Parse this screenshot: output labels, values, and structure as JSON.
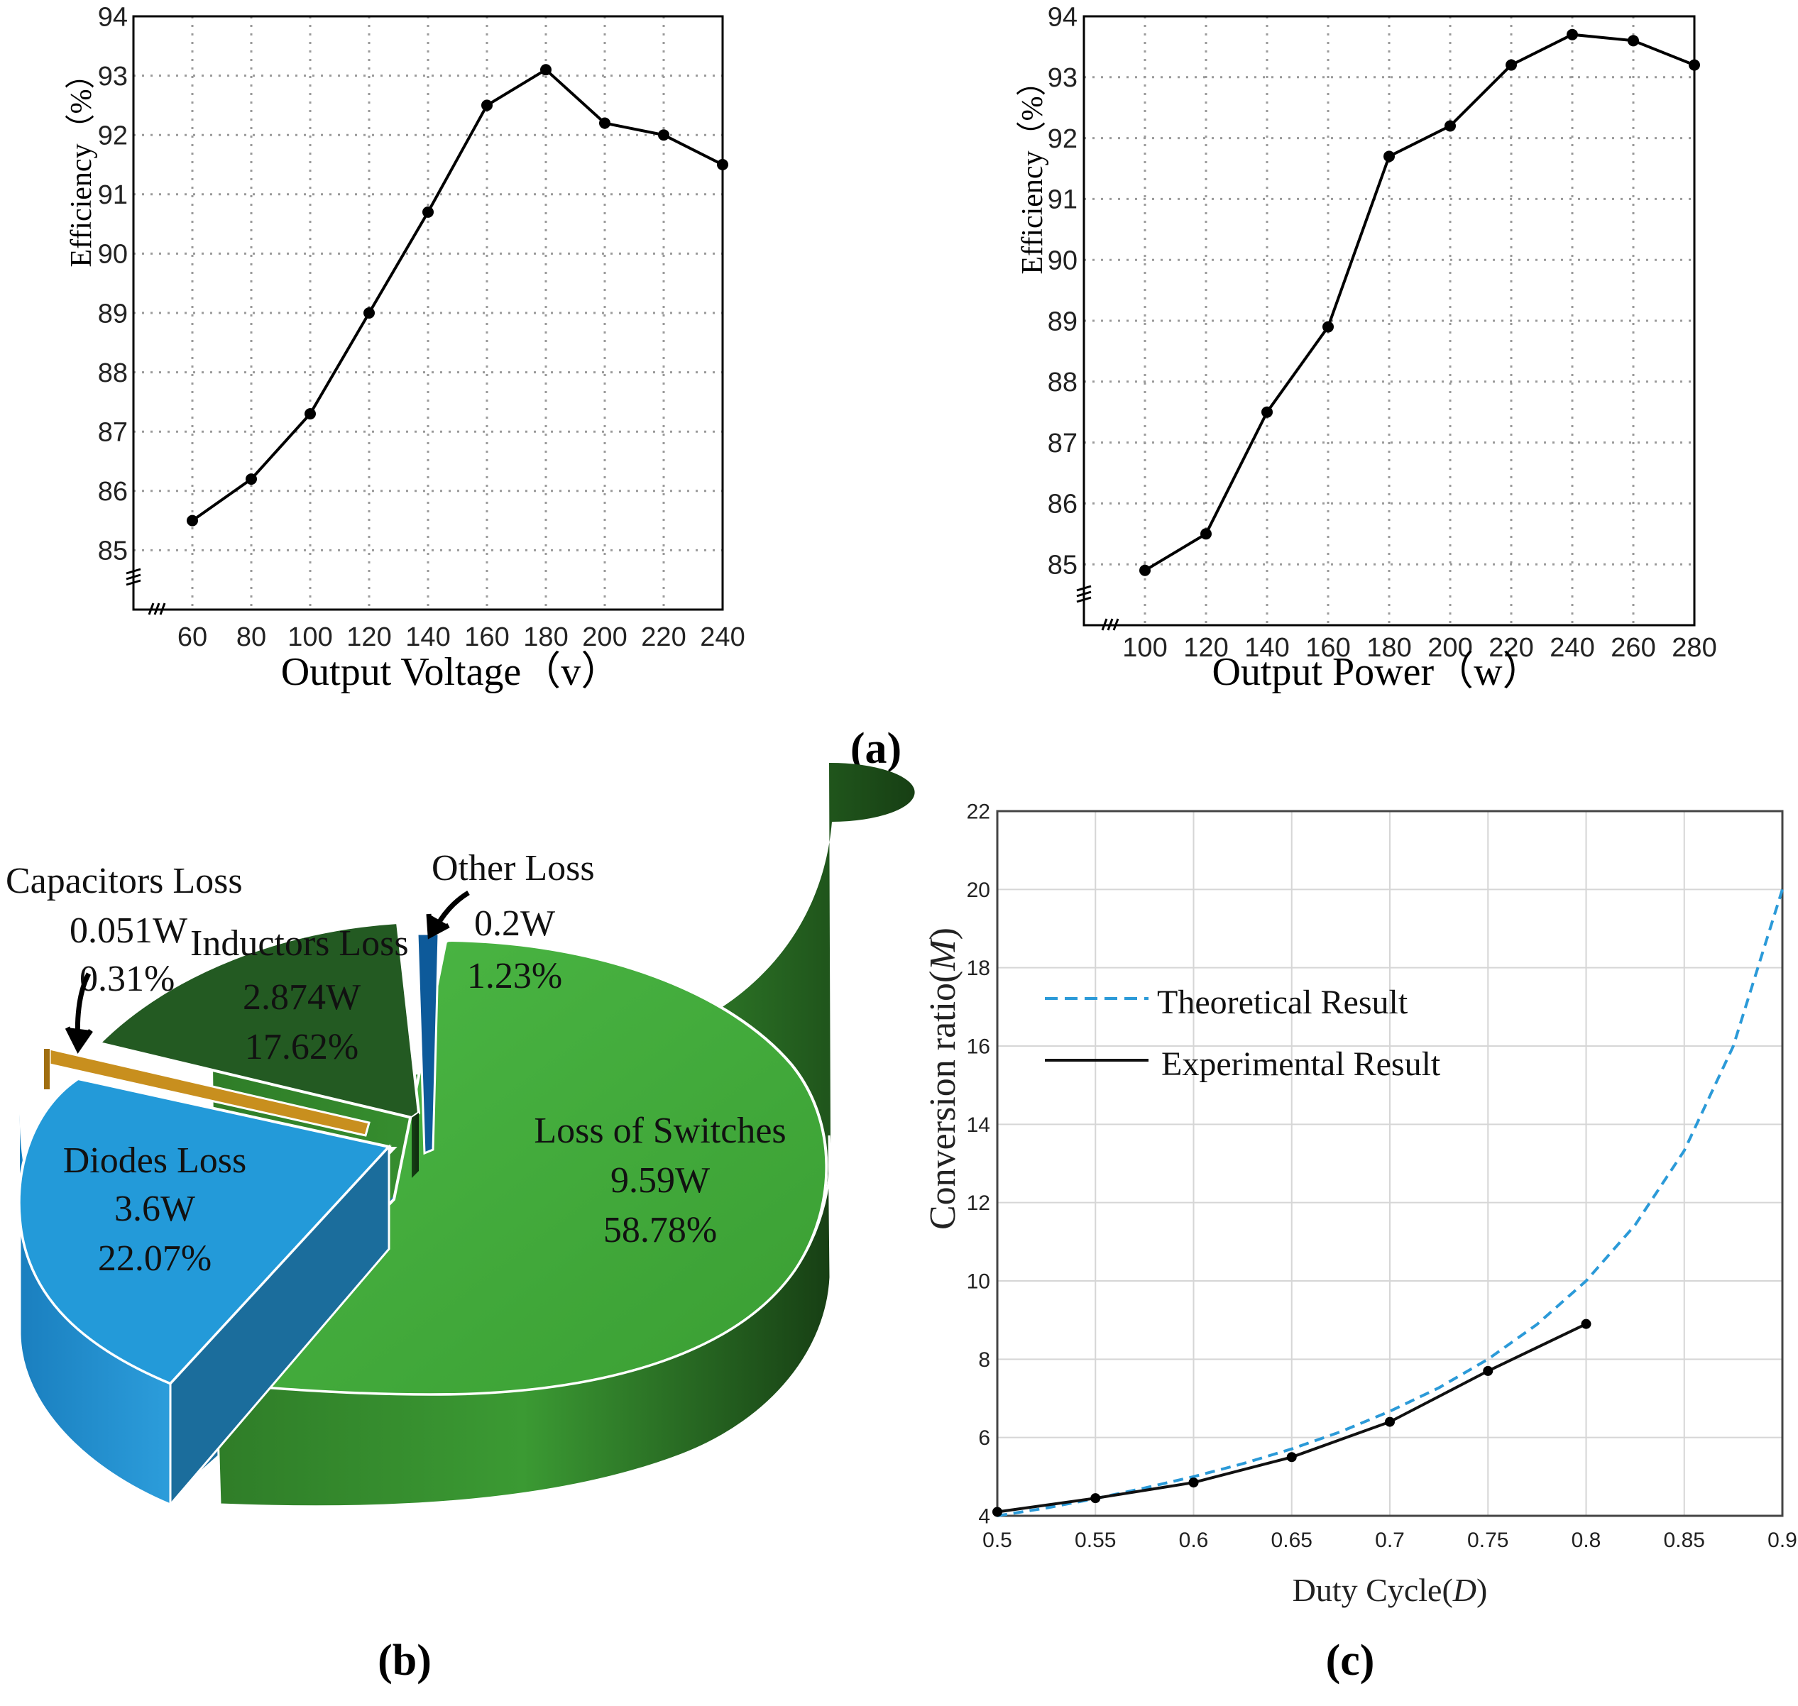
{
  "panel_labels": {
    "a": "(a)",
    "b": "(b)",
    "c": "(c)"
  },
  "chart_data": [
    {
      "id": "efficiency-vs-voltage",
      "type": "line",
      "xlabel": "Output Voltage（v）",
      "ylabel": "Efficiency（%）",
      "xlim": [
        40,
        240
      ],
      "ylim": [
        84,
        94
      ],
      "x_ticks": [
        60,
        80,
        100,
        120,
        140,
        160,
        180,
        200,
        220,
        240
      ],
      "y_ticks": [
        85,
        86,
        87,
        88,
        89,
        90,
        91,
        92,
        93,
        94
      ],
      "grid": true,
      "x": [
        60,
        80,
        100,
        120,
        140,
        160,
        180,
        200,
        220,
        240
      ],
      "y": [
        85.5,
        86.2,
        87.3,
        89.0,
        90.7,
        92.5,
        93.1,
        92.2,
        92.0,
        91.5
      ]
    },
    {
      "id": "efficiency-vs-power",
      "type": "line",
      "xlabel": "Output Power（w）",
      "ylabel": "Efficiency（%）",
      "xlim": [
        80,
        280
      ],
      "ylim": [
        84,
        94
      ],
      "x_ticks": [
        100,
        120,
        140,
        160,
        180,
        200,
        220,
        240,
        260,
        280
      ],
      "x_tick_labels": [
        "100",
        "120",
        "140",
        "160",
        "180",
        "200",
        "220",
        "240",
        "260",
        "280"
      ],
      "y_ticks": [
        85,
        86,
        87,
        88,
        89,
        90,
        91,
        92,
        93,
        94
      ],
      "grid": true,
      "x": [
        100,
        120,
        140,
        160,
        180,
        200,
        220,
        240,
        260,
        280
      ],
      "y": [
        84.9,
        85.5,
        87.5,
        88.9,
        91.7,
        92.2,
        93.2,
        93.7,
        93.6,
        93.2
      ]
    },
    {
      "id": "loss-breakdown",
      "type": "pie",
      "slices": [
        {
          "name": "Loss of Switches",
          "watts": "9.59W",
          "percent": "58.78%",
          "value": 58.78,
          "color": "#43ac3c"
        },
        {
          "name": "Diodes Loss",
          "watts": "3.6W",
          "percent": "22.07%",
          "value": 22.07,
          "color": "#239ad9"
        },
        {
          "name": "Capacitors Loss",
          "watts": "0.051W",
          "percent": "0.31%",
          "value": 0.31,
          "color": "#c88f1e"
        },
        {
          "name": "Inductors Loss",
          "watts": "2.874W",
          "percent": "17.62%",
          "value": 17.62,
          "color": "#235a22"
        },
        {
          "name": "Other Loss",
          "watts": "0.2W",
          "percent": "1.23%",
          "value": 1.23,
          "color": "#0d5a9a"
        }
      ]
    },
    {
      "id": "conversion-ratio",
      "type": "line",
      "xlabel_main": "Duty Cycle(",
      "xlabel_italic": "D",
      "xlabel_close": ")",
      "ylabel_main": "Conversion ratio(",
      "ylabel_italic": "M",
      "ylabel_close": ")",
      "xlim": [
        0.5,
        0.9
      ],
      "ylim": [
        4,
        22
      ],
      "x_ticks": [
        0.5,
        0.55,
        0.6,
        0.65,
        0.7,
        0.75,
        0.8,
        0.85,
        0.9
      ],
      "x_tick_labels": [
        "0.5",
        "0.55",
        "0.6",
        "0.65",
        "0.7",
        "0.75",
        "0.8",
        "0.85",
        "0.9"
      ],
      "y_ticks": [
        4,
        6,
        8,
        10,
        12,
        14,
        16,
        18,
        20,
        22
      ],
      "grid": true,
      "legend_placement": "upper-left",
      "series": [
        {
          "name": "Theoretical Result",
          "style": "dashed",
          "color": "#2b9ad8",
          "x": [
            0.5,
            0.525,
            0.55,
            0.575,
            0.6,
            0.625,
            0.65,
            0.675,
            0.7,
            0.725,
            0.75,
            0.775,
            0.8,
            0.825,
            0.85,
            0.875,
            0.9
          ],
          "y": [
            4.0,
            4.2,
            4.44,
            4.71,
            5.0,
            5.33,
            5.71,
            6.15,
            6.67,
            7.27,
            8.0,
            8.89,
            10.0,
            11.43,
            13.33,
            16.0,
            20.0
          ]
        },
        {
          "name": "Experimental Result",
          "style": "solid",
          "color": "#111111",
          "markers": true,
          "x": [
            0.5,
            0.55,
            0.6,
            0.65,
            0.7,
            0.75,
            0.8
          ],
          "y": [
            4.1,
            4.45,
            4.85,
            5.5,
            6.4,
            7.7,
            8.9
          ]
        }
      ]
    }
  ]
}
